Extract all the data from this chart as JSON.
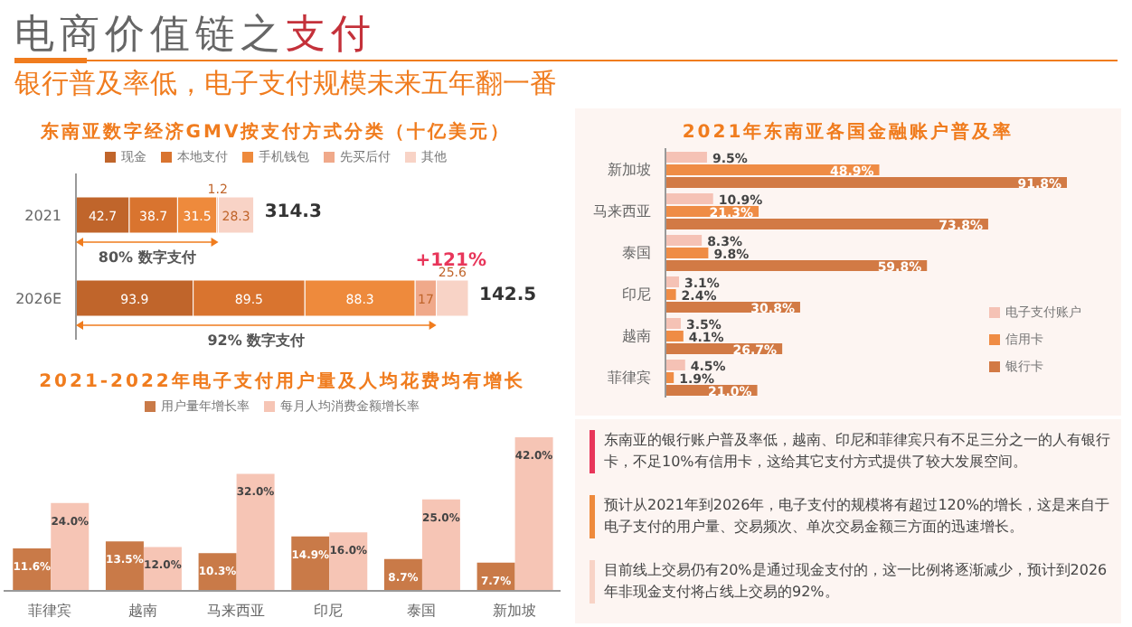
{
  "chart_data": [
    {
      "type": "bar",
      "orientation": "horizontal",
      "stacked": true,
      "title": "东南亚数字经济GMV按支付方式分类（十亿美元）",
      "categories": [
        "2021",
        "2026E"
      ],
      "series": [
        {
          "name": "现金",
          "color": "#c0652b",
          "values": [
            42.7,
            93.9
          ]
        },
        {
          "name": "本地支付",
          "color": "#d9742f",
          "values": [
            38.7,
            89.5
          ]
        },
        {
          "name": "手机钱包",
          "color": "#ee8a3c",
          "values": [
            31.5,
            88.3
          ]
        },
        {
          "name": "先买后付",
          "color": "#f0a98a",
          "values": [
            1.2,
            17
          ]
        },
        {
          "name": "其他",
          "color": "#f8d3c6",
          "values": [
            28.3,
            25.6
          ]
        }
      ],
      "data_labels": true,
      "legend": "top",
      "tick_labels": "y",
      "grid": false,
      "annotations": [
        "80% 数字支付",
        "92% 数字支付",
        "+121%",
        "314.3",
        "142.5"
      ]
    },
    {
      "type": "bar",
      "title": "2021-2022年电子支付用户量及人均花费均有增长",
      "categories": [
        "菲律宾",
        "越南",
        "马来西亚",
        "印尼",
        "泰国",
        "新加坡"
      ],
      "series": [
        {
          "name": "用户量年增长率",
          "color": "#c97a48",
          "values": [
            11.6,
            13.5,
            10.3,
            14.9,
            8.7,
            7.7
          ],
          "value_labels": [
            "11.6%",
            "13.5%",
            "10.3%",
            "14.9%",
            "8.7%",
            "7.7%"
          ]
        },
        {
          "name": "每月人均消费金额增长率",
          "color": "#f6c5b5",
          "values": [
            24.0,
            12.0,
            32.0,
            16.0,
            25.0,
            42.0
          ],
          "value_labels": [
            "24.0%",
            "12.0%",
            "32.0%",
            "16.0%",
            "25.0%",
            "42.0%"
          ]
        }
      ],
      "legend": "top",
      "tick_labels": "x",
      "grid": false
    },
    {
      "type": "bar",
      "orientation": "horizontal",
      "title": "2021年东南亚各国金融账户普及率",
      "categories": [
        "新加坡",
        "马来西亚",
        "泰国",
        "印尼",
        "越南",
        "菲律宾"
      ],
      "series": [
        {
          "name": "电子支付账户",
          "color": "#f5c2b5",
          "values": [
            9.5,
            10.9,
            8.3,
            3.1,
            3.5,
            4.5
          ],
          "value_labels": [
            "9.5%",
            "10.9%",
            "8.3%",
            "3.1%",
            "3.5%",
            "4.5%"
          ]
        },
        {
          "name": "信用卡",
          "color": "#ef8c45",
          "values": [
            48.9,
            21.3,
            9.8,
            2.4,
            4.1,
            1.9
          ],
          "value_labels": [
            "48.9%",
            "21.3%",
            "9.8%",
            "2.4%",
            "4.1%",
            "1.9%"
          ]
        },
        {
          "name": "银行卡",
          "color": "#d27a45",
          "values": [
            91.8,
            73.8,
            59.8,
            30.8,
            26.7,
            21.0
          ],
          "value_labels": [
            "91.8%",
            "73.8%",
            "59.8%",
            "30.8%",
            "26.7%",
            "21.0%"
          ]
        }
      ],
      "legend": "bottom right",
      "tick_labels": "y",
      "grid": false
    },
    {
      "type": "other",
      "title": "电商价值链之支付",
      "subtitle": "银行普及率低，电子支付规模未来五年翻一番",
      "annotations": [
        "东南亚的银行账户普及率低，越南、印尼和菲律宾只有不足三分之一的人有银行卡，不足10%有信用卡，这给其它支付方式提供了较大发展空间。",
        "预计从2021年到2026年，电子支付的规模将有超过120%的增长，这是来自于电子支付的用户量、交易频次、单次交易金额三方面的迅速增长。",
        "目前线上交易仍有20%是通过现金支付的，这一比例将逐渐减少，预计到2026年非现金支付将占线上交易的92%。"
      ]
    }
  ]
}
